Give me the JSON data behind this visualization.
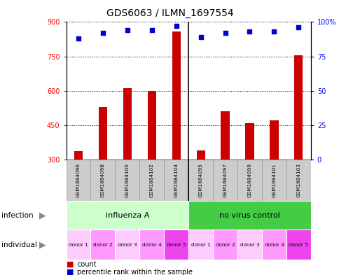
{
  "title": "GDS6063 / ILMN_1697554",
  "samples": [
    "GSM1684096",
    "GSM1684098",
    "GSM1684100",
    "GSM1684102",
    "GSM1684104",
    "GSM1684095",
    "GSM1684097",
    "GSM1684099",
    "GSM1684101",
    "GSM1684103"
  ],
  "counts": [
    335,
    530,
    610,
    600,
    860,
    340,
    510,
    460,
    470,
    755
  ],
  "percentiles": [
    88,
    92,
    94,
    94,
    97,
    89,
    92,
    93,
    93,
    96
  ],
  "infection_groups": [
    {
      "label": "influenza A",
      "start": 0,
      "end": 5,
      "color": "#ccffcc"
    },
    {
      "label": "no virus control",
      "start": 5,
      "end": 10,
      "color": "#44cc44"
    }
  ],
  "individual_labels": [
    "donor 1",
    "donor 2",
    "donor 3",
    "donor 4",
    "donor 5",
    "donor 1",
    "donor 2",
    "donor 3",
    "donor 4",
    "donor 5"
  ],
  "individual_colors": [
    "#ffccff",
    "#ff99ff",
    "#ffccff",
    "#ff99ff",
    "#ee44ee",
    "#ffccff",
    "#ff99ff",
    "#ffccff",
    "#ff99ff",
    "#ee44ee"
  ],
  "ylim_left": [
    300,
    900
  ],
  "yticks_left": [
    300,
    450,
    600,
    750,
    900
  ],
  "ylim_right": [
    0,
    100
  ],
  "yticks_right": [
    0,
    25,
    50,
    75,
    100
  ],
  "bar_color": "#cc0000",
  "dot_color": "#0000cc",
  "bar_bottom": 300,
  "background_color": "#ffffff",
  "gsm_bg_color": "#cccccc",
  "gsm_border_color": "#999999",
  "separator_color": "#000000",
  "label_fontsize": 7,
  "title_fontsize": 10
}
